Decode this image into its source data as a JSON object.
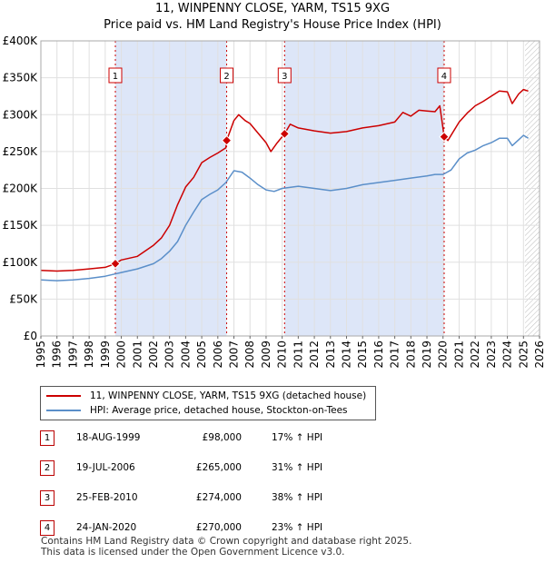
{
  "titles": {
    "line1": "11, WINPENNY CLOSE, YARM, TS15 9XG",
    "line2": "Price paid vs. HM Land Registry's House Price Index (HPI)"
  },
  "legend": {
    "property": "11, WINPENNY CLOSE, YARM, TS15 9XG (detached house)",
    "hpi": "HPI: Average price, detached house, Stockton-on-Tees"
  },
  "sales": [
    {
      "num": "1",
      "date": "18-AUG-1999",
      "price": "£98,000",
      "hpi": "17% ↑ HPI"
    },
    {
      "num": "2",
      "date": "19-JUL-2006",
      "price": "£265,000",
      "hpi": "31% ↑ HPI"
    },
    {
      "num": "3",
      "date": "25-FEB-2010",
      "price": "£274,000",
      "hpi": "38% ↑ HPI"
    },
    {
      "num": "4",
      "date": "24-JAN-2020",
      "price": "£270,000",
      "hpi": "23% ↑ HPI"
    }
  ],
  "footer": {
    "line1": "Contains HM Land Registry data © Crown copyright and database right 2025.",
    "line2": "This data is licensed under the Open Government Licence v3.0."
  },
  "colors": {
    "property": "#cc0000",
    "hpi": "#5b8fc9",
    "shade": "#dde6f8",
    "grid": "#e0e0e0",
    "marker_border": "#cc0000"
  },
  "chart_data": {
    "type": "line",
    "title": "11, WINPENNY CLOSE, YARM, TS15 9XG",
    "subtitle": "Price paid vs. HM Land Registry's House Price Index (HPI)",
    "xlabel": "",
    "ylabel": "",
    "xlim": [
      1995,
      2026
    ],
    "ylim": [
      0,
      400000
    ],
    "xticks": [
      1995,
      1996,
      1997,
      1998,
      1999,
      2000,
      2001,
      2002,
      2003,
      2004,
      2005,
      2006,
      2007,
      2008,
      2009,
      2010,
      2011,
      2012,
      2013,
      2014,
      2015,
      2016,
      2017,
      2018,
      2019,
      2020,
      2021,
      2022,
      2023,
      2024,
      2025,
      2026
    ],
    "yticks": [
      {
        "value": 0,
        "label": "£0"
      },
      {
        "value": 50000,
        "label": "£50K"
      },
      {
        "value": 100000,
        "label": "£100K"
      },
      {
        "value": 150000,
        "label": "£150K"
      },
      {
        "value": 200000,
        "label": "£200K"
      },
      {
        "value": 250000,
        "label": "£250K"
      },
      {
        "value": 300000,
        "label": "£300K"
      },
      {
        "value": 350000,
        "label": "£350K"
      },
      {
        "value": 400000,
        "label": "£400K"
      }
    ],
    "grid": true,
    "shaded_ranges": [
      [
        1999.63,
        2006.55
      ],
      [
        2010.15,
        2020.07
      ]
    ],
    "hatched_from": 2025.1,
    "sales": [
      {
        "label": "1",
        "x": 1999.63,
        "y": 98000
      },
      {
        "label": "2",
        "x": 2006.55,
        "y": 265000
      },
      {
        "label": "3",
        "x": 2010.15,
        "y": 274000
      },
      {
        "label": "4",
        "x": 2020.07,
        "y": 270000
      }
    ],
    "series": [
      {
        "name": "11, WINPENNY CLOSE, YARM, TS15 9XG (detached house)",
        "color": "#cc0000",
        "x": [
          1995,
          1996,
          1997,
          1998,
          1999,
          1999.63,
          2000,
          2001,
          2002,
          2002.5,
          2003,
          2003.5,
          2004,
          2004.5,
          2005,
          2005.5,
          2006,
          2006.5,
          2006.55,
          2007,
          2007.3,
          2007.7,
          2008,
          2008.5,
          2009,
          2009.3,
          2009.7,
          2010.15,
          2010.5,
          2011,
          2012,
          2013,
          2014,
          2015,
          2016,
          2017,
          2017.5,
          2018,
          2018.5,
          2019,
          2019.5,
          2019.8,
          2020.07,
          2020.3,
          2021,
          2021.5,
          2022,
          2022.5,
          2023,
          2023.5,
          2024,
          2024.3,
          2024.7,
          2025,
          2025.3
        ],
        "values": [
          89000,
          88000,
          89000,
          91000,
          93000,
          98000,
          103000,
          108000,
          123000,
          133000,
          150000,
          178000,
          202000,
          215000,
          235000,
          242000,
          248000,
          255000,
          265000,
          292000,
          300000,
          292000,
          288000,
          275000,
          262000,
          250000,
          262000,
          274000,
          287000,
          282000,
          278000,
          275000,
          277000,
          282000,
          285000,
          290000,
          303000,
          298000,
          306000,
          305000,
          304000,
          312000,
          270000,
          265000,
          290000,
          302000,
          312000,
          318000,
          325000,
          332000,
          331000,
          315000,
          328000,
          334000,
          332000
        ]
      },
      {
        "name": "HPI: Average price, detached house, Stockton-on-Tees",
        "color": "#5b8fc9",
        "x": [
          1995,
          1996,
          1997,
          1998,
          1999,
          2000,
          2001,
          2002,
          2002.5,
          2003,
          2003.5,
          2004,
          2004.5,
          2005,
          2005.5,
          2006,
          2006.5,
          2007,
          2007.5,
          2008,
          2008.5,
          2009,
          2009.5,
          2010,
          2011,
          2012,
          2013,
          2014,
          2015,
          2016,
          2017,
          2018,
          2019,
          2019.5,
          2020,
          2020.5,
          2021,
          2021.5,
          2022,
          2022.5,
          2023,
          2023.5,
          2024,
          2024.3,
          2024.7,
          2025,
          2025.3
        ],
        "values": [
          76000,
          75000,
          76000,
          78000,
          81000,
          86000,
          91000,
          98000,
          105000,
          115000,
          128000,
          150000,
          168000,
          185000,
          192000,
          198000,
          208000,
          224000,
          222000,
          214000,
          205000,
          198000,
          196000,
          200000,
          203000,
          200000,
          197000,
          200000,
          205000,
          208000,
          211000,
          214000,
          217000,
          219000,
          219000,
          225000,
          240000,
          248000,
          252000,
          258000,
          262000,
          268000,
          268000,
          258000,
          266000,
          272000,
          268000
        ]
      }
    ]
  }
}
